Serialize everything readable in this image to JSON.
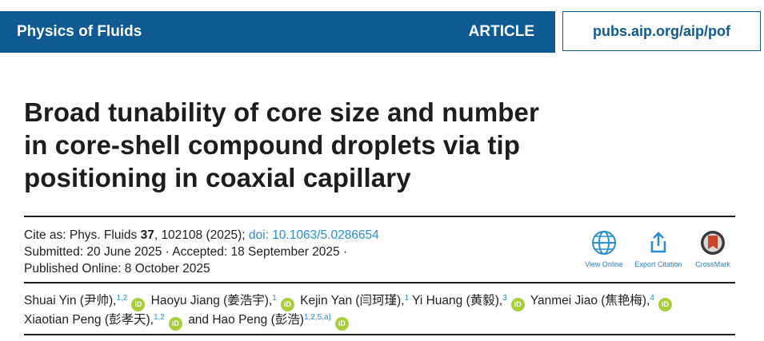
{
  "header": {
    "journal": "Physics of Fluids",
    "type": "ARTICLE",
    "url": "pubs.aip.org/aip/pof"
  },
  "title_lines": [
    "Broad tunability of core size and number",
    "in core-shell compound droplets via tip",
    "positioning in coaxial capillary"
  ],
  "citation": {
    "prefix": "Cite as: Phys. Fluids ",
    "volume": "37",
    "rest": ", 102108 (2025); ",
    "doi": "doi: 10.1063/5.0286654",
    "submitted": "Submitted: 20 June 2025 · Accepted: 18 September 2025 ·",
    "published": "Published Online: 8 October 2025"
  },
  "actions": {
    "view_online": "View Online",
    "export_citation": "Export Citation",
    "crossmark": "CrossMark"
  },
  "orcid_label": "iD",
  "authors": [
    {
      "text": "Shuai Yin (尹帅),",
      "sup": "1,2",
      "orcid": true
    },
    {
      "text": "Haoyu Jiang (姜浩宇),",
      "sup": "1",
      "orcid": true
    },
    {
      "text": "Kejin Yan (闫珂瑾),",
      "sup": "1",
      "orcid": false
    },
    {
      "text": "Yi Huang (黄毅),",
      "sup": "3",
      "orcid": true
    },
    {
      "text": "Yanmei Jiao (焦艳梅),",
      "sup": "4",
      "orcid": true
    },
    {
      "text": "Xiaotian Peng (彭孝天),",
      "sup": "1,2",
      "orcid": true
    },
    {
      "text": "and Hao Peng (彭浩)",
      "sup": "1,2,5,a)",
      "orcid": true
    }
  ],
  "colors": {
    "header_blue": "#0f5a93",
    "link_blue": "#2a8fd1",
    "orcid_green": "#a6ce39",
    "crossmark_red": "#c8452c"
  }
}
